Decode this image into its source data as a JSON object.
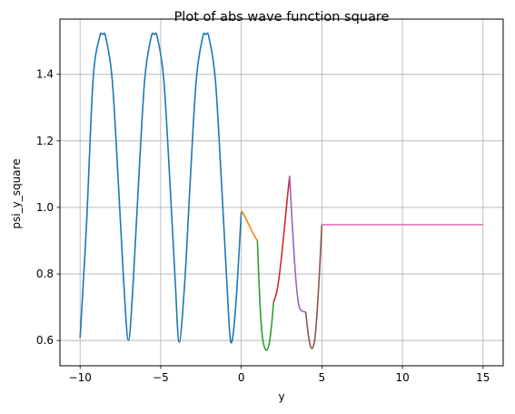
{
  "chart_data": {
    "type": "line",
    "title": "Plot of abs wave function square",
    "xlabel": "y",
    "ylabel": "psi_y_square",
    "xlim": [
      -11.25,
      16.25
    ],
    "ylim": [
      0.524,
      1.566
    ],
    "xticks": [
      -10,
      -5,
      0,
      5,
      10,
      15
    ],
    "yticks": [
      0.6,
      0.8,
      1.0,
      1.2,
      1.4
    ],
    "xtick_labels": [
      "−10",
      "−5",
      "0",
      "5",
      "10",
      "15"
    ],
    "ytick_labels": [
      "0.6",
      "0.8",
      "1.0",
      "1.2",
      "1.4"
    ],
    "grid": true,
    "series": [
      {
        "color": "#1f77b4",
        "x": [
          -10,
          -9.6,
          -9.2,
          -8.8,
          -8.6,
          -8.4,
          -8,
          -7.6,
          -7.3,
          -7.0,
          -6.7,
          -6.4,
          -6.0,
          -5.6,
          -5.4,
          -5.2,
          -4.8,
          -4.4,
          -4.1,
          -3.85,
          -3.5,
          -3.2,
          -2.8,
          -2.4,
          -2.2,
          -2.0,
          -1.6,
          -1.2,
          -0.9,
          -0.65,
          -0.35,
          0.0
        ],
        "y": [
          0.608,
          0.95,
          1.38,
          1.51,
          1.52,
          1.51,
          1.38,
          1.05,
          0.78,
          0.6,
          0.78,
          1.05,
          1.38,
          1.51,
          1.52,
          1.51,
          1.38,
          1.05,
          0.78,
          0.595,
          0.78,
          1.05,
          1.38,
          1.51,
          1.52,
          1.51,
          1.38,
          1.05,
          0.78,
          0.595,
          0.7,
          0.985
        ]
      },
      {
        "color": "#ff7f0e",
        "x": [
          0.0,
          0.2,
          0.4,
          0.6,
          0.8,
          1.0
        ],
        "y": [
          0.99,
          0.975,
          0.955,
          0.935,
          0.915,
          0.9
        ]
      },
      {
        "color": "#2ca02c",
        "x": [
          1.0,
          1.15,
          1.3,
          1.45,
          1.6,
          1.75,
          1.9,
          2.0
        ],
        "y": [
          0.9,
          0.72,
          0.615,
          0.578,
          0.572,
          0.595,
          0.655,
          0.715
        ]
      },
      {
        "color": "#d62728",
        "x": [
          2.0,
          2.2,
          2.4,
          2.6,
          2.8,
          3.0
        ],
        "y": [
          0.715,
          0.745,
          0.81,
          0.9,
          1.0,
          1.095
        ]
      },
      {
        "color": "#9467bd",
        "x": [
          3.0,
          3.15,
          3.3,
          3.45,
          3.6,
          3.8,
          4.0
        ],
        "y": [
          1.095,
          0.96,
          0.84,
          0.75,
          0.7,
          0.688,
          0.686
        ]
      },
      {
        "color": "#8c564b",
        "x": [
          4.0,
          4.15,
          4.3,
          4.45,
          4.6,
          4.8,
          5.0
        ],
        "y": [
          0.686,
          0.62,
          0.582,
          0.58,
          0.62,
          0.76,
          0.948
        ]
      },
      {
        "color": "#e377c2",
        "x": [
          5.0,
          15.0
        ],
        "y": [
          0.948,
          0.948
        ]
      }
    ]
  }
}
